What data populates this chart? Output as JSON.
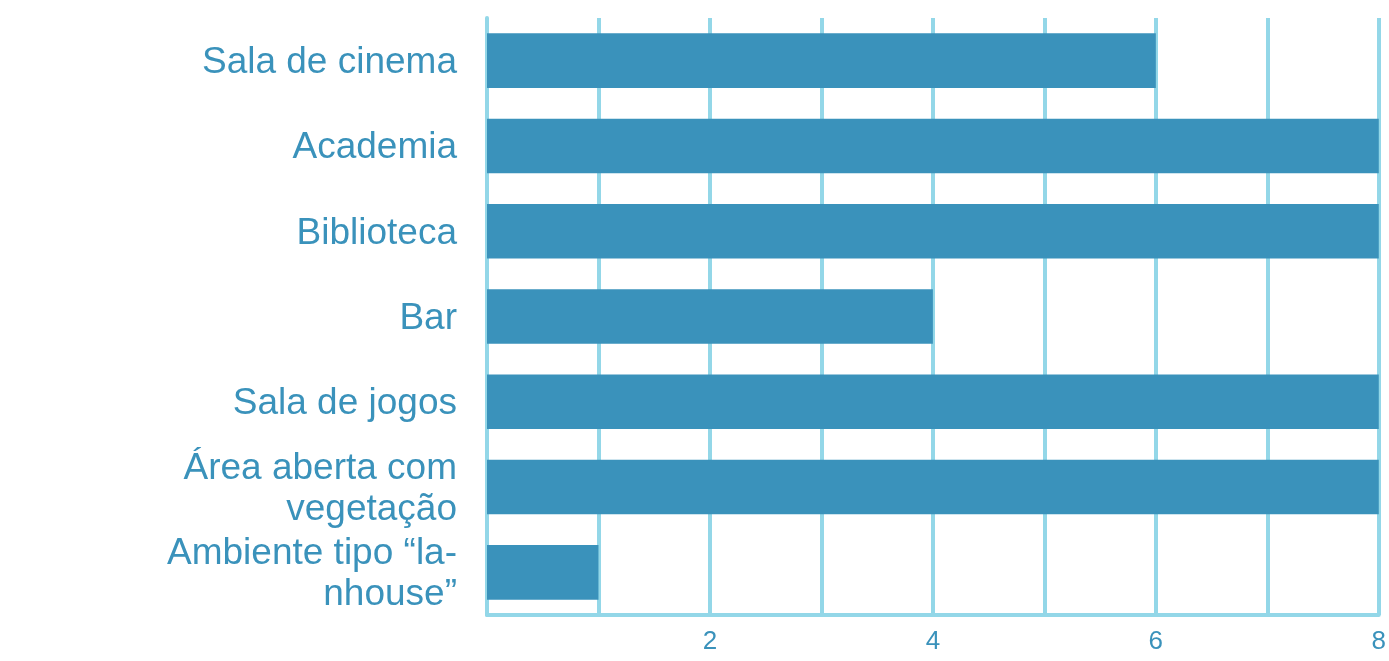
{
  "chart_data": {
    "type": "bar",
    "orientation": "horizontal",
    "categories": [
      "Sala de cinema",
      "Academia",
      "Biblioteca",
      "Bar",
      "Sala de jogos",
      "Área aberta com\nvegetação",
      "Ambiente tipo “la-\nnhouse”"
    ],
    "values": [
      6,
      8,
      8,
      4,
      8,
      8,
      1
    ],
    "color": "#3a92bb",
    "xlim": [
      0,
      8
    ],
    "xticks": [
      {
        "value": 1,
        "label": null
      },
      2,
      {
        "value": 3,
        "label": null
      },
      4,
      {
        "value": 5,
        "label": null
      },
      6,
      {
        "value": 7,
        "label": null
      },
      8
    ],
    "grid": "x"
  }
}
